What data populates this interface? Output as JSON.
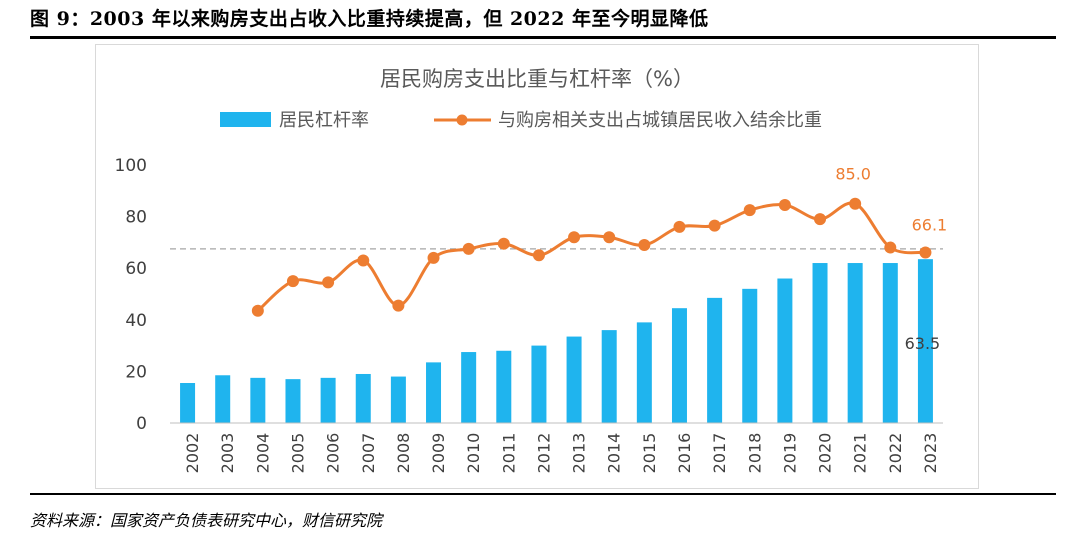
{
  "figure": {
    "title": "图 9：2003 年以来购房支出占收入比重持续提高，但 2022 年至今明显降低",
    "source": "资料来源：国家资产负债表研究中心，财信研究院"
  },
  "colors": {
    "bar": "#1fb4ee",
    "line": "#ed7d31",
    "axis_text": "#404040",
    "title_text": "#595959"
  },
  "chart_data": {
    "type": "bar",
    "title": "居民购房支出比重与杠杆率（%）",
    "categories": [
      "2002",
      "2003",
      "2004",
      "2005",
      "2006",
      "2007",
      "2008",
      "2009",
      "2010",
      "2011",
      "2012",
      "2013",
      "2014",
      "2015",
      "2016",
      "2017",
      "2018",
      "2019",
      "2020",
      "2021",
      "2022",
      "2023"
    ],
    "series": [
      {
        "name": "居民杠杆率",
        "type": "bar",
        "values": [
          15.5,
          18.5,
          17.5,
          17.0,
          17.5,
          19.0,
          18.0,
          23.5,
          27.5,
          28.0,
          30.0,
          33.5,
          36.0,
          39.0,
          44.5,
          48.5,
          52.0,
          56.0,
          62.0,
          62.0,
          62.0,
          63.5
        ]
      },
      {
        "name": "与购房相关支出占城镇居民收入结余比重",
        "type": "line",
        "values": [
          null,
          null,
          43.5,
          55.0,
          54.5,
          63.0,
          45.5,
          64.0,
          67.5,
          69.5,
          65.0,
          72.0,
          72.0,
          69.0,
          76.0,
          76.5,
          82.5,
          84.5,
          79.0,
          85.0,
          68.0,
          66.1
        ]
      }
    ],
    "ylim": [
      0,
      100
    ],
    "yticks": [
      0,
      20,
      40,
      60,
      80,
      100
    ],
    "reference_line": 67.5,
    "annotations": {
      "line_2021": "85.0",
      "line_2023": "66.1",
      "bar_2023": "63.5"
    },
    "legend": "top-center",
    "grid": false
  }
}
